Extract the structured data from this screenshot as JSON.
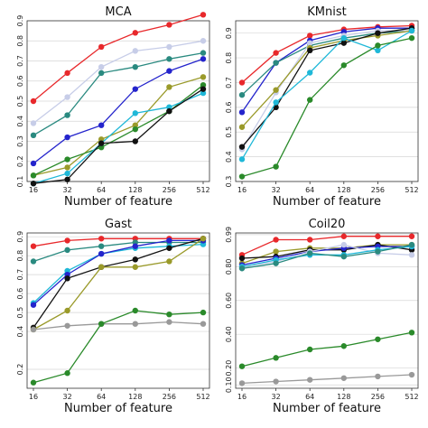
{
  "chart_data": [
    {
      "type": "line",
      "title": "MCA",
      "xlabel": "Number of feature",
      "ylabel": "",
      "categories": [
        "16",
        "32",
        "64",
        "128",
        "256",
        "512"
      ],
      "ylim": [
        0.1,
        0.9
      ],
      "yticks": [
        0.1,
        0.2,
        0.3,
        0.4,
        0.5,
        0.6,
        0.7,
        0.8,
        0.9
      ],
      "ytick_labels": [
        "0.1",
        "0.2",
        "0.3",
        "0.4",
        "0.5",
        "0.6",
        "0.7",
        "0.8",
        "0.9"
      ],
      "grid": true,
      "series": [
        {
          "color": "#e8282b",
          "values": [
            0.5,
            0.64,
            0.77,
            0.84,
            0.88,
            0.93
          ]
        },
        {
          "color": "#c7cde8",
          "values": [
            0.39,
            0.52,
            0.67,
            0.75,
            0.77,
            0.8
          ]
        },
        {
          "color": "#2a8a80",
          "values": [
            0.33,
            0.43,
            0.64,
            0.67,
            0.71,
            0.74
          ]
        },
        {
          "color": "#2424cc",
          "values": [
            0.19,
            0.32,
            0.38,
            0.56,
            0.65,
            0.71
          ]
        },
        {
          "color": "#9a9a2a",
          "values": [
            0.13,
            0.17,
            0.31,
            0.38,
            0.57,
            0.62
          ]
        },
        {
          "color": "#2a8a2a",
          "values": [
            0.13,
            0.21,
            0.27,
            0.36,
            0.45,
            0.58
          ]
        },
        {
          "color": "#1fb8d8",
          "values": [
            0.09,
            0.14,
            0.29,
            0.44,
            0.47,
            0.54
          ]
        },
        {
          "color": "#111111",
          "values": [
            0.09,
            0.11,
            0.29,
            0.3,
            0.45,
            0.56
          ]
        }
      ]
    },
    {
      "type": "line",
      "title": "KMnist",
      "xlabel": "Number of feature",
      "ylabel": "",
      "categories": [
        "16",
        "32",
        "64",
        "128",
        "256",
        "512"
      ],
      "ylim": [
        0.3,
        0.95
      ],
      "yticks": [
        0.3,
        0.4,
        0.5,
        0.6,
        0.7,
        0.8,
        0.9
      ],
      "ytick_labels": [
        "0.3",
        "0.4",
        "0.5",
        "0.6",
        "0.7",
        "0.8",
        "0.9"
      ],
      "grid": true,
      "series": [
        {
          "color": "#e8282b",
          "values": [
            0.7,
            0.82,
            0.89,
            0.915,
            0.925,
            0.93
          ]
        },
        {
          "color": "#2424cc",
          "values": [
            0.58,
            0.78,
            0.87,
            0.905,
            0.92,
            0.92
          ]
        },
        {
          "color": "#2a8a80",
          "values": [
            0.65,
            0.78,
            0.85,
            0.88,
            0.9,
            0.91
          ]
        },
        {
          "color": "#c7cde8",
          "values": [
            0.43,
            0.66,
            0.86,
            0.89,
            0.91,
            0.91
          ]
        },
        {
          "color": "#9a9a2a",
          "values": [
            0.52,
            0.67,
            0.84,
            0.87,
            0.89,
            0.91
          ]
        },
        {
          "color": "#111111",
          "values": [
            0.44,
            0.6,
            0.83,
            0.86,
            0.9,
            0.92
          ]
        },
        {
          "color": "#1fb8d8",
          "values": [
            0.39,
            0.62,
            0.74,
            0.88,
            0.83,
            0.91
          ]
        },
        {
          "color": "#2a8a2a",
          "values": [
            0.32,
            0.36,
            0.63,
            0.77,
            0.85,
            0.88
          ]
        }
      ]
    },
    {
      "type": "line",
      "title": "Gast",
      "xlabel": "Number of feature",
      "ylabel": "",
      "categories": [
        "16",
        "32",
        "64",
        "128",
        "256",
        "512"
      ],
      "ylim": [
        0.1,
        0.92
      ],
      "yticks": [
        0.2,
        0.4,
        0.5,
        0.6,
        0.7,
        0.8,
        0.9
      ],
      "ytick_labels": [
        "0.2",
        "0.4",
        "0.5",
        "0.6",
        "0.7",
        "0.8",
        "0.9"
      ],
      "grid": true,
      "series": [
        {
          "color": "#e8282b",
          "values": [
            0.85,
            0.88,
            0.89,
            0.89,
            0.89,
            0.89
          ]
        },
        {
          "color": "#2a8a80",
          "values": [
            0.77,
            0.83,
            0.85,
            0.87,
            0.87,
            0.87
          ]
        },
        {
          "color": "#1fb8d8",
          "values": [
            0.55,
            0.72,
            0.81,
            0.84,
            0.85,
            0.86
          ]
        },
        {
          "color": "#2424cc",
          "values": [
            0.54,
            0.7,
            0.81,
            0.85,
            0.88,
            0.88
          ]
        },
        {
          "color": "#111111",
          "values": [
            0.42,
            0.68,
            0.74,
            0.78,
            0.84,
            0.89
          ]
        },
        {
          "color": "#9a9a2a",
          "values": [
            0.41,
            0.51,
            0.74,
            0.74,
            0.77,
            0.89
          ]
        },
        {
          "color": "#999999",
          "values": [
            0.41,
            0.43,
            0.44,
            0.44,
            0.45,
            0.44
          ]
        },
        {
          "color": "#2a8a2a",
          "values": [
            0.13,
            0.18,
            0.44,
            0.51,
            0.49,
            0.5
          ]
        }
      ]
    },
    {
      "type": "line",
      "title": "Coil20",
      "xlabel": "Number of feature",
      "ylabel": "",
      "categories": [
        "16",
        "32",
        "64",
        "128",
        "256",
        "512"
      ],
      "ylim": [
        0.08,
        1.0
      ],
      "yticks": [
        0.1,
        0.2,
        0.4,
        0.6,
        0.8,
        0.99
      ],
      "ytick_labels": [
        "0.10",
        "0.20",
        "0.40",
        "0.60",
        "0.80",
        "0.99"
      ],
      "grid": true,
      "series": [
        {
          "color": "#e8282b",
          "values": [
            0.87,
            0.96,
            0.96,
            0.98,
            0.98,
            0.98
          ]
        },
        {
          "color": "#9a9a2a",
          "values": [
            0.82,
            0.89,
            0.91,
            0.91,
            0.93,
            0.93
          ]
        },
        {
          "color": "#111111",
          "values": [
            0.85,
            0.86,
            0.9,
            0.9,
            0.93,
            0.9
          ]
        },
        {
          "color": "#2424cc",
          "values": [
            0.81,
            0.85,
            0.89,
            0.91,
            0.92,
            0.92
          ]
        },
        {
          "color": "#c7cde8",
          "values": [
            0.8,
            0.83,
            0.89,
            0.93,
            0.88,
            0.87
          ]
        },
        {
          "color": "#1fb8d8",
          "values": [
            0.8,
            0.84,
            0.87,
            0.87,
            0.9,
            0.92
          ]
        },
        {
          "color": "#2a8a80",
          "values": [
            0.79,
            0.82,
            0.88,
            0.86,
            0.89,
            0.93
          ]
        },
        {
          "color": "#2a8a2a",
          "values": [
            0.21,
            0.26,
            0.31,
            0.33,
            0.37,
            0.41
          ]
        },
        {
          "color": "#999999",
          "values": [
            0.11,
            0.12,
            0.13,
            0.14,
            0.15,
            0.16
          ]
        }
      ]
    }
  ]
}
